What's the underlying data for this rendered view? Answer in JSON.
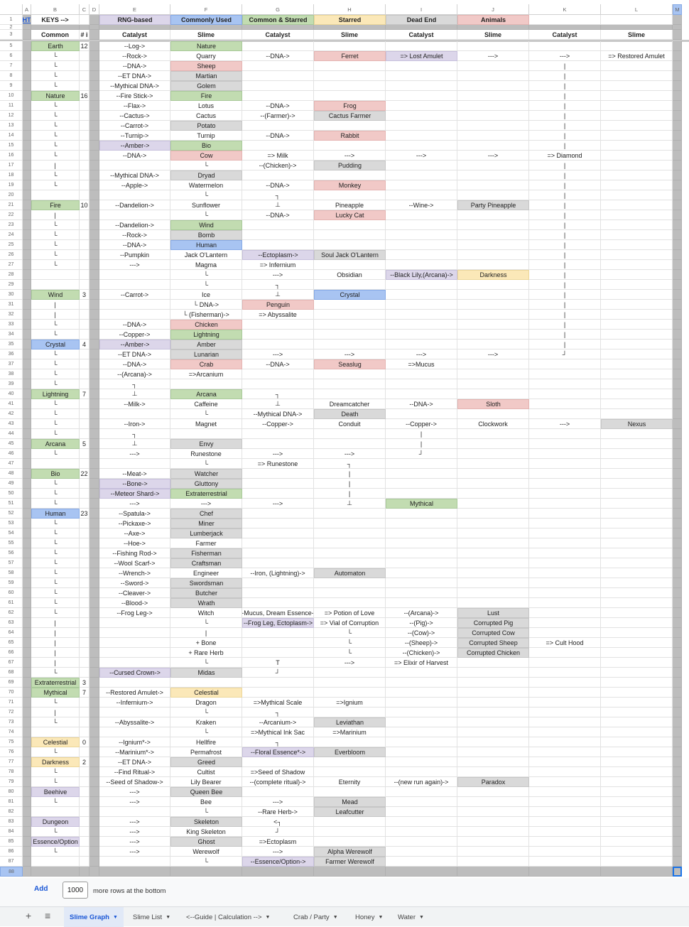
{
  "colors": {
    "g": "#c2dcb1",
    "r": "#f1c9c7",
    "s": "#d9d9d9",
    "p": "#dcd6ea",
    "b": "#a8c4f2",
    "y": "#fbe8b8",
    "link": "#1a57d6"
  },
  "column_letters": [
    "A",
    "B",
    "C",
    "D",
    "E",
    "F",
    "G",
    "H",
    "I",
    "J",
    "K",
    "L",
    "M"
  ],
  "row1": {
    "A": "HT",
    "B": "KEYS -->",
    "E": "RNG-based",
    "F": "Commonly Used",
    "G": "Common & Starred",
    "H": "Starred",
    "I": "Dead End",
    "J": "Animals",
    "fill": {
      "E": "p",
      "F": "b",
      "G": "g",
      "H": "y",
      "I": "s",
      "J": "r"
    }
  },
  "row3": {
    "B": "Common",
    "C": "# i",
    "E": "Catalyst",
    "F": "Slime",
    "G": "Catalyst",
    "H": "Slime",
    "I": "Catalyst",
    "J": "Slime",
    "K": "Catalyst",
    "L": "Slime"
  },
  "rows": [
    {
      "r": 5,
      "B": "Earth",
      "C": "12",
      "E": "--Log->",
      "F": "Nature",
      "fill": {
        "B": "g",
        "F": "g"
      }
    },
    {
      "r": 6,
      "B": "└",
      "E": "--Rock->",
      "F": "Quarry",
      "G": "--DNA->",
      "H": "Ferret",
      "I": "=> Lost Amulet",
      "J": "--->",
      "K": "--->",
      "L": "=> Restored Amulet",
      "fill": {
        "H": "r",
        "I": "p"
      }
    },
    {
      "r": 7,
      "B": "└",
      "E": "--DNA->",
      "F": "Sheep",
      "K": "|",
      "fill": {
        "F": "r"
      }
    },
    {
      "r": 8,
      "B": "└",
      "E": "--ET DNA->",
      "F": "Martian",
      "K": "|",
      "fill": {
        "F": "s"
      }
    },
    {
      "r": 9,
      "B": "└",
      "E": "--Mythical DNA->",
      "F": "Golem",
      "K": "|",
      "fill": {
        "F": "s"
      }
    },
    {
      "r": 10,
      "B": "Nature",
      "C": "16",
      "E": "--Fire Stick->",
      "F": "Fire",
      "K": "|",
      "fill": {
        "B": "g",
        "F": "g"
      }
    },
    {
      "r": 11,
      "B": "└",
      "E": "--Flax->",
      "F": "Lotus",
      "G": "--DNA->",
      "H": "Frog",
      "K": "|",
      "fill": {
        "H": "r"
      }
    },
    {
      "r": 12,
      "B": "└",
      "E": "--Cactus->",
      "F": "Cactus",
      "G": "--(Farmer)->",
      "H": "Cactus Farmer",
      "K": "|",
      "fill": {
        "H": "s"
      }
    },
    {
      "r": 13,
      "B": "└",
      "E": "--Carrot->",
      "F": "Potato",
      "K": "|",
      "fill": {
        "F": "s"
      }
    },
    {
      "r": 14,
      "B": "└",
      "E": "--Turnip->",
      "F": "Turnip",
      "G": "--DNA->",
      "H": "Rabbit",
      "K": "|",
      "fill": {
        "H": "r"
      }
    },
    {
      "r": 15,
      "B": "└",
      "E": "--Amber->",
      "F": "Bio",
      "K": "|",
      "fill": {
        "E": "p",
        "F": "g"
      }
    },
    {
      "r": 16,
      "B": "└",
      "E": "--DNA->",
      "F": "Cow",
      "G": "=> Milk",
      "H": "--->",
      "I": "--->",
      "J": "--->",
      "K": "=> Diamond",
      "fill": {
        "F": "r"
      }
    },
    {
      "r": 17,
      "B": "|",
      "F": "└",
      "G": "--(Chicken)->",
      "H": "Pudding",
      "K": "|",
      "fill": {
        "H": "s"
      }
    },
    {
      "r": 18,
      "B": "└",
      "E": "--Mythical DNA->",
      "F": "Dryad",
      "K": "|",
      "fill": {
        "F": "s"
      }
    },
    {
      "r": 19,
      "B": "└",
      "E": "--Apple->",
      "F": "Watermelon",
      "G": "--DNA->",
      "H": "Monkey",
      "K": "|",
      "fill": {
        "H": "r"
      }
    },
    {
      "r": 20,
      "F": "└",
      "G": "┐",
      "K": "|"
    },
    {
      "r": 21,
      "B": "Fire",
      "C": "10",
      "E": "--Dandelion->",
      "F": "Sunflower",
      "G": "⊥",
      "H": "Pineapple",
      "I": "--Wine->",
      "J": "Party Pineapple",
      "K": "|",
      "fill": {
        "B": "g",
        "J": "s"
      }
    },
    {
      "r": 22,
      "B": "|",
      "F": "└",
      "G": "--DNA->",
      "H": "Lucky Cat",
      "K": "|",
      "fill": {
        "H": "r"
      }
    },
    {
      "r": 23,
      "B": "└",
      "E": "--Dandelion->",
      "F": "Wind",
      "K": "|",
      "fill": {
        "F": "g"
      }
    },
    {
      "r": 24,
      "B": "└",
      "E": "--Rock->",
      "F": "Bomb",
      "K": "|",
      "fill": {
        "F": "s"
      }
    },
    {
      "r": 25,
      "B": "└",
      "E": "--DNA->",
      "F": "Human",
      "K": "|",
      "fill": {
        "F": "b"
      }
    },
    {
      "r": 26,
      "B": "└",
      "E": "--Pumpkin",
      "F": "Jack O'Lantern",
      "G": "--Ectoplasm->",
      "H": "Soul Jack O'Lantern",
      "K": "|",
      "fill": {
        "G": "p",
        "H": "s"
      }
    },
    {
      "r": 27,
      "B": "└",
      "E": "--->",
      "F": "Magma",
      "G": "=> Infernium",
      "K": "|"
    },
    {
      "r": 28,
      "F": "└",
      "G": "--->",
      "H": "Obsidian",
      "I": "--Black Lily,(Arcana)->",
      "J": "Darkness",
      "K": "|",
      "fill": {
        "I": "p",
        "J": "y"
      }
    },
    {
      "r": 29,
      "F": "└",
      "G": "┐",
      "K": "|"
    },
    {
      "r": 30,
      "B": "Wind",
      "C": "3",
      "E": "--Carrot->",
      "F": "Ice",
      "G": "⊥",
      "H": "Crystal",
      "K": "|",
      "fill": {
        "B": "g",
        "H": "b"
      }
    },
    {
      "r": 31,
      "B": "|",
      "F": "└ DNA->",
      "G": "Penguin",
      "K": "|",
      "fill": {
        "G": "r"
      }
    },
    {
      "r": 32,
      "B": "|",
      "F": "└ (Fisherman)->",
      "G": "=> Abyssalite",
      "K": "|"
    },
    {
      "r": 33,
      "B": "└",
      "E": "--DNA->",
      "F": "Chicken",
      "K": "|",
      "fill": {
        "F": "r"
      }
    },
    {
      "r": 34,
      "B": "└",
      "E": "--Copper->",
      "F": "Lightning",
      "K": "|",
      "fill": {
        "F": "g"
      }
    },
    {
      "r": 35,
      "B": "Crystal",
      "C": "4",
      "E": "--Amber->",
      "F": "Amber",
      "K": "|",
      "fill": {
        "B": "b",
        "E": "p",
        "F": "s"
      }
    },
    {
      "r": 36,
      "B": "└",
      "E": "--ET DNA->",
      "F": "Lunarian",
      "G": "--->",
      "H": "--->",
      "I": "--->",
      "J": "--->",
      "K": "┘",
      "fill": {
        "F": "s"
      }
    },
    {
      "r": 37,
      "B": "└",
      "E": "--DNA->",
      "F": "Crab",
      "G": "--DNA->",
      "H": "Seaslug",
      "I": "=>Mucus",
      "fill": {
        "F": "r",
        "H": "r"
      }
    },
    {
      "r": 38,
      "B": "└",
      "E": "--(Arcana)->",
      "F": "=>Arcanium"
    },
    {
      "r": 39,
      "B": "└",
      "E": "┐"
    },
    {
      "r": 40,
      "B": "Lightning",
      "C": "7",
      "E": "⊥",
      "F": "Arcana",
      "G": "┐",
      "fill": {
        "B": "g",
        "F": "g"
      }
    },
    {
      "r": 41,
      "B": "└",
      "E": "--Milk->",
      "F": "Caffeine",
      "G": "⊥",
      "H": "Dreamcatcher",
      "I": "--DNA->",
      "J": "Sloth",
      "fill": {
        "J": "r"
      }
    },
    {
      "r": 42,
      "B": "└",
      "F": "└",
      "G": "--Mythical DNA->",
      "H": "Death",
      "fill": {
        "H": "s"
      }
    },
    {
      "r": 43,
      "B": "└",
      "E": "--Iron->",
      "F": "Magnet",
      "G": "--Copper->",
      "H": "Conduit",
      "I": "--Copper->",
      "J": "Clockwork",
      "K": "--->",
      "L": "Nexus",
      "fill": {
        "L": "s"
      }
    },
    {
      "r": 44,
      "B": "└",
      "E": "┐",
      "I": "|"
    },
    {
      "r": 45,
      "B": "Arcana",
      "C": "5",
      "E": "⊥",
      "F": "Envy",
      "I": "|",
      "fill": {
        "B": "g",
        "F": "s"
      }
    },
    {
      "r": 46,
      "B": "└",
      "E": "--->",
      "F": "Runestone",
      "G": "--->",
      "H": "--->",
      "I": "┘"
    },
    {
      "r": 47,
      "F": "└",
      "G": "=> Runestone",
      "H": "┐"
    },
    {
      "r": 48,
      "B": "Bio",
      "C": "22",
      "E": "--Meat->",
      "F": "Watcher",
      "H": "|",
      "fill": {
        "B": "g",
        "F": "s"
      }
    },
    {
      "r": 49,
      "B": "└",
      "E": "--Bone->",
      "F": "Gluttony",
      "H": "|",
      "fill": {
        "E": "p",
        "F": "s"
      }
    },
    {
      "r": 50,
      "B": "└",
      "E": "--Meteor Shard->",
      "F": "Extraterrestrial",
      "H": "|",
      "fill": {
        "E": "p",
        "F": "g"
      }
    },
    {
      "r": 51,
      "B": "└",
      "E": "--->",
      "F": "--->",
      "G": "--->",
      "H": "⊥",
      "I": "Mythical",
      "fill": {
        "I": "g"
      }
    },
    {
      "r": 52,
      "B": "Human",
      "C": "23",
      "E": "--Spatula->",
      "F": "Chef",
      "fill": {
        "B": "b",
        "F": "s"
      }
    },
    {
      "r": 53,
      "B": "└",
      "E": "--Pickaxe->",
      "F": "Miner",
      "fill": {
        "F": "s"
      }
    },
    {
      "r": 54,
      "B": "└",
      "E": "--Axe->",
      "F": "Lumberjack",
      "fill": {
        "F": "s"
      }
    },
    {
      "r": 55,
      "B": "└",
      "E": "--Hoe->",
      "F": "Farmer"
    },
    {
      "r": 56,
      "B": "└",
      "E": "--Fishing Rod->",
      "F": "Fisherman",
      "fill": {
        "F": "s"
      }
    },
    {
      "r": 57,
      "B": "└",
      "E": "--Wool Scarf->",
      "F": "Craftsman",
      "fill": {
        "F": "s"
      }
    },
    {
      "r": 58,
      "B": "└",
      "E": "--Wrench->",
      "F": "Engineer",
      "G": "--Iron, (Lightning)->",
      "H": "Automaton",
      "fill": {
        "H": "s"
      }
    },
    {
      "r": 59,
      "B": "└",
      "E": "--Sword->",
      "F": "Swordsman",
      "fill": {
        "F": "s"
      }
    },
    {
      "r": 60,
      "B": "└",
      "E": "--Cleaver->",
      "F": "Butcher",
      "fill": {
        "F": "s"
      }
    },
    {
      "r": 61,
      "B": "└",
      "E": "--Blood->",
      "F": "Wrath",
      "fill": {
        "F": "s"
      }
    },
    {
      "r": 62,
      "B": "└",
      "E": "--Frog Leg->",
      "F": "Witch",
      "G": "-Mucus, Dream Essence-",
      "H": "=> Potion of Love",
      "I": "--(Arcana)->",
      "J": "Lust",
      "fill": {
        "J": "s"
      }
    },
    {
      "r": 63,
      "B": "|",
      "F": "└",
      "G": "--Frog Leg, Ectoplasm->",
      "H": "=> Vial of Corruption",
      "I": "--(Pig)->",
      "J": "Corrupted Pig",
      "fill": {
        "G": "p",
        "J": "s"
      }
    },
    {
      "r": 64,
      "B": "|",
      "F": "|",
      "H": "└",
      "I": "--(Cow)->",
      "J": "Corrupted Cow",
      "fill": {
        "J": "s"
      }
    },
    {
      "r": 65,
      "B": "|",
      "F": "+ Bone",
      "H": "└",
      "I": "--(Sheep)->",
      "J": "Corrupted Sheep",
      "K": "=> Cult Hood",
      "fill": {
        "J": "s"
      }
    },
    {
      "r": 66,
      "B": "|",
      "F": "+ Rare Herb",
      "H": "└",
      "I": "--(Chicken)->",
      "J": "Corrupted Chicken",
      "fill": {
        "J": "s"
      }
    },
    {
      "r": 67,
      "B": "|",
      "F": "└",
      "G": "T",
      "H": "--->",
      "I": "=> Elixir of Harvest"
    },
    {
      "r": 68,
      "B": "└",
      "E": "--Cursed Crown->",
      "F": "Midas",
      "G": "┘",
      "fill": {
        "E": "p",
        "F": "s"
      }
    },
    {
      "r": 69,
      "B": "Extraterrestrial",
      "C": "3",
      "fill": {
        "B": "g"
      }
    },
    {
      "r": 70,
      "B": "Mythical",
      "C": "7",
      "E": "--Restored Amulet->",
      "F": "Celestial",
      "fill": {
        "B": "g",
        "F": "y"
      }
    },
    {
      "r": 71,
      "B": "└",
      "E": "--Infernium->",
      "F": "Dragon",
      "G": "=>Mythical Scale",
      "H": "=>Ignium"
    },
    {
      "r": 72,
      "B": "|",
      "F": "└",
      "G": "┐"
    },
    {
      "r": 73,
      "B": "└",
      "E": "--Abyssalite->",
      "F": "Kraken",
      "G": "--Arcanium->",
      "H": "Leviathan",
      "fill": {
        "H": "s"
      }
    },
    {
      "r": 74,
      "F": "└",
      "G": "=>Mythical Ink Sac",
      "H": "=>Marinium"
    },
    {
      "r": 75,
      "B": "Celestial",
      "C": "0",
      "E": "--Ignium*->",
      "F": "Hellfire",
      "G": "┐",
      "fill": {
        "B": "y"
      }
    },
    {
      "r": 76,
      "B": "└",
      "E": "--Marinium*->",
      "F": "Permafrost",
      "G": "--Floral Essence*->",
      "H": "Everbloom",
      "fill": {
        "G": "p",
        "H": "s"
      }
    },
    {
      "r": 77,
      "B": "Darkness",
      "C": "2",
      "E": "--ET DNA->",
      "F": "Greed",
      "fill": {
        "B": "y",
        "F": "s"
      }
    },
    {
      "r": 78,
      "B": "└",
      "E": "--Find Ritual->",
      "F": "Cultist",
      "G": "=>Seed of Shadow"
    },
    {
      "r": 79,
      "B": "└",
      "E": "--Seed of Shadow->",
      "F": "Lily Bearer",
      "G": "--(complete ritual)->",
      "H": "Eternity",
      "I": "--(new run again)->",
      "J": "Paradox",
      "fill": {
        "J": "s"
      }
    },
    {
      "r": 80,
      "B": "Beehive",
      "E": "--->",
      "F": "Queen Bee",
      "fill": {
        "B": "p",
        "F": "s"
      }
    },
    {
      "r": 81,
      "B": "└",
      "E": "--->",
      "F": "Bee",
      "G": "--->",
      "H": "Mead",
      "fill": {
        "H": "s"
      }
    },
    {
      "r": 82,
      "F": "└",
      "G": "--Rare Herb->",
      "H": "Leafcutter",
      "fill": {
        "H": "s"
      }
    },
    {
      "r": 83,
      "B": "Dungeon",
      "E": "--->",
      "F": "Skeleton",
      "G": "<┐",
      "fill": {
        "B": "p",
        "F": "s"
      }
    },
    {
      "r": 84,
      "B": "└",
      "E": "--->",
      "F": "King Skeleton",
      "G": "┘"
    },
    {
      "r": 85,
      "B": "Essence/Option",
      "E": "--->",
      "F": "Ghost",
      "G": "=>Ectoplasm",
      "fill": {
        "B": "p",
        "F": "s"
      }
    },
    {
      "r": 86,
      "B": "└",
      "E": "--->",
      "F": "Werewolf",
      "G": "--->",
      "H": "Alpha Werewolf",
      "fill": {
        "H": "s"
      }
    },
    {
      "r": 87,
      "F": "└",
      "G": "--Essence/Option->",
      "H": "Farmer Werewolf",
      "fill": {
        "G": "p",
        "H": "s"
      }
    }
  ],
  "footer": {
    "add_label": "Add",
    "rows_value": "1000",
    "more_rows_label": "more rows at the bottom"
  },
  "sheet_tabs": [
    {
      "label": "Slime Graph",
      "active": true
    },
    {
      "label": "Slime List"
    },
    {
      "label": "<--Guide | Calculation -->"
    },
    {
      "label": "Crab / Party"
    },
    {
      "label": "Honey"
    },
    {
      "label": "Water"
    }
  ],
  "icons": {
    "add_sheet": "plus-icon",
    "all_sheets": "menu-icon",
    "tab_menu": "caret-down-icon"
  }
}
